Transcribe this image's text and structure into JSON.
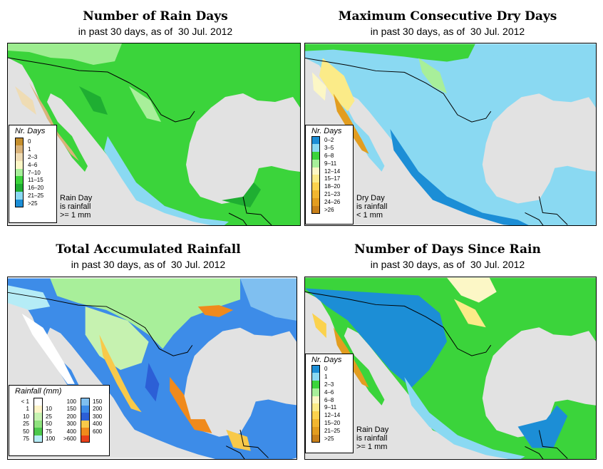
{
  "shared": {
    "subtitle_prefix": "in past 30 days, as of",
    "date": "30 Jul. 2012",
    "land_colors": {
      "ocean": "#e2e2e2",
      "border": "#000000"
    }
  },
  "panels": [
    {
      "id": "rain_days",
      "title": "Number of Rain Days",
      "legend_title": "Nr. Days",
      "legend": [
        {
          "label": "0",
          "color": "#c58f2e"
        },
        {
          "label": "1",
          "color": "#d9b37a"
        },
        {
          "label": "2–3",
          "color": "#efdcb4"
        },
        {
          "label": "4–6",
          "color": "#fcf7c6"
        },
        {
          "label": "7–10",
          "color": "#a8ef9a"
        },
        {
          "label": "11–15",
          "color": "#3bd43b"
        },
        {
          "label": "16–20",
          "color": "#1fae32"
        },
        {
          "label": "21–25",
          "color": "#8ad9f2"
        },
        {
          "label": ">25",
          "color": "#1c8ed6"
        }
      ],
      "note": [
        "Rain Day",
        "is rainfall",
        ">= 1 mm"
      ]
    },
    {
      "id": "dry_days",
      "title": "Maximum Consecutive Dry Days",
      "legend_title": "Nr. Days",
      "legend": [
        {
          "label": "0–2",
          "color": "#1c8ed6"
        },
        {
          "label": "3–5",
          "color": "#8ad9f2"
        },
        {
          "label": "6–8",
          "color": "#3bd43b"
        },
        {
          "label": "9–11",
          "color": "#a8ef9a"
        },
        {
          "label": "12–14",
          "color": "#fcf7c6"
        },
        {
          "label": "15–17",
          "color": "#fbeb88"
        },
        {
          "label": "18–20",
          "color": "#fbd24d"
        },
        {
          "label": "21–23",
          "color": "#f2b630"
        },
        {
          "label": "24–26",
          "color": "#e29d20"
        },
        {
          "label": ">26",
          "color": "#c8801a"
        }
      ],
      "note": [
        "Dry Day",
        "is rainfall",
        "< 1 mm"
      ]
    },
    {
      "id": "rainfall",
      "title": "Total Accumulated Rainfall",
      "legend_title": "Rainfall (mm)",
      "legend_left": [
        {
          "lo": "< 1",
          "hi": "",
          "color": "#ffffff"
        },
        {
          "lo": "1",
          "hi": "10",
          "color": "#fdf4c8"
        },
        {
          "lo": "10",
          "hi": "25",
          "color": "#c6f2b0"
        },
        {
          "lo": "25",
          "hi": "50",
          "color": "#8fe27e"
        },
        {
          "lo": "50",
          "hi": "75",
          "color": "#4cc84c"
        },
        {
          "lo": "75",
          "hi": "100",
          "color": "#b5ecf6"
        }
      ],
      "legend_right": [
        {
          "lo": "100",
          "hi": "150",
          "color": "#7fbff0"
        },
        {
          "lo": "150",
          "hi": "200",
          "color": "#3d8ce8"
        },
        {
          "lo": "200",
          "hi": "300",
          "color": "#2c5fd6"
        },
        {
          "lo": "300",
          "hi": "400",
          "color": "#f8c94a"
        },
        {
          "lo": "400",
          "hi": "600",
          "color": "#f08a1c"
        },
        {
          "lo": ">600",
          "hi": "",
          "color": "#e8401a"
        }
      ]
    },
    {
      "id": "days_since",
      "title": "Number of Days Since Rain",
      "legend_title": "Nr. Days",
      "legend": [
        {
          "label": "0",
          "color": "#1c8ed6"
        },
        {
          "label": "1",
          "color": "#8ad9f2"
        },
        {
          "label": "2–3",
          "color": "#3bd43b"
        },
        {
          "label": "4–6",
          "color": "#a8ef9a"
        },
        {
          "label": "6–8",
          "color": "#fcf7c6"
        },
        {
          "label": "9–11",
          "color": "#fbeb88"
        },
        {
          "label": "12–14",
          "color": "#fbd24d"
        },
        {
          "label": "15–20",
          "color": "#f2b630"
        },
        {
          "label": "21–25",
          "color": "#e29d20"
        },
        {
          "label": ">25",
          "color": "#c8801a"
        }
      ],
      "note": [
        "Rain Day",
        "is rainfall",
        ">= 1 mm"
      ]
    }
  ]
}
